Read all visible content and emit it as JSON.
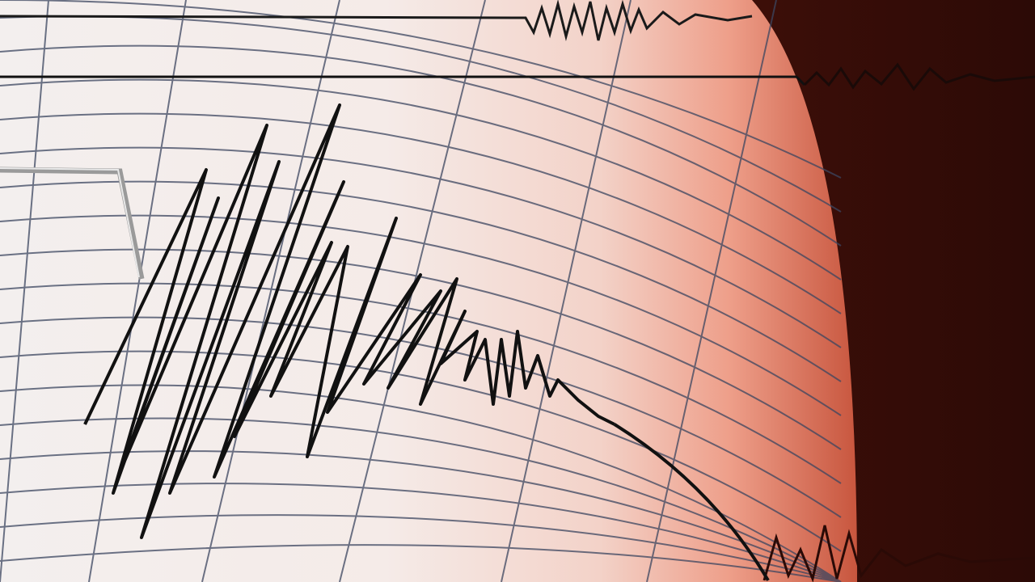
{
  "scene": {
    "subject": "seismograph-drum",
    "colors": {
      "paper": "#f4eeec",
      "paper_glow": "#f0a08c",
      "background": "#3a0d08",
      "grid": "#3c4660",
      "trace": "#111111"
    }
  }
}
